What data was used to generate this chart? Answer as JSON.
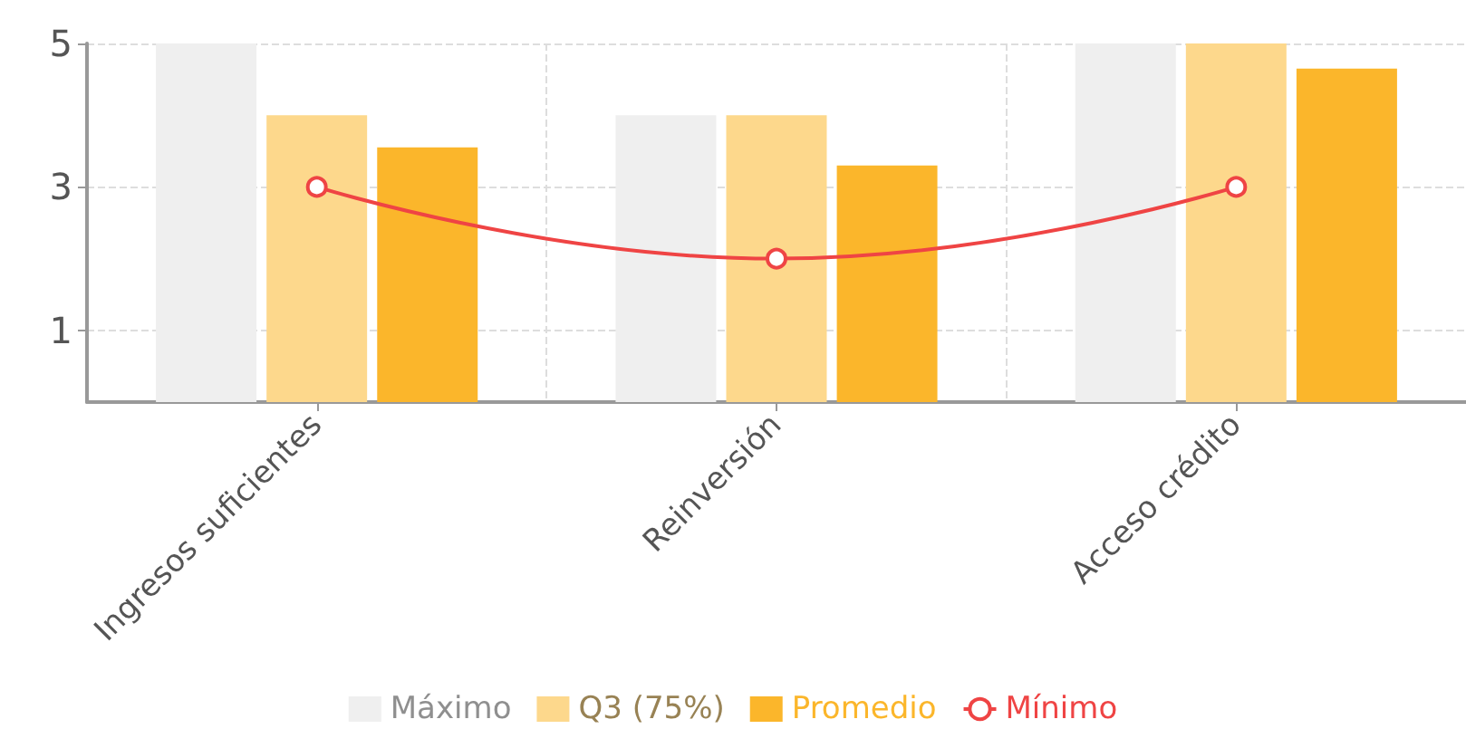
{
  "chart_data": {
    "type": "bar",
    "categories": [
      "Ingresos suficientes",
      "Reinversión",
      "Acceso crédito"
    ],
    "series": [
      {
        "name": "Máximo",
        "color": "#efefef",
        "values": [
          5,
          4,
          5
        ]
      },
      {
        "name": "Q3 (75%)",
        "color": "#fdd88c",
        "values": [
          4,
          4,
          5
        ]
      },
      {
        "name": "Promedio",
        "color": "#fbb62b",
        "values": [
          3.55,
          3.3,
          4.65
        ]
      },
      {
        "name": "Mínimo",
        "type": "line",
        "color": "#ef4444",
        "values": [
          3,
          2,
          3
        ]
      }
    ],
    "ylim": [
      0,
      5
    ],
    "yticks": [
      1,
      3,
      5
    ],
    "grid": true,
    "legend": "bottom",
    "marker": "circle"
  }
}
